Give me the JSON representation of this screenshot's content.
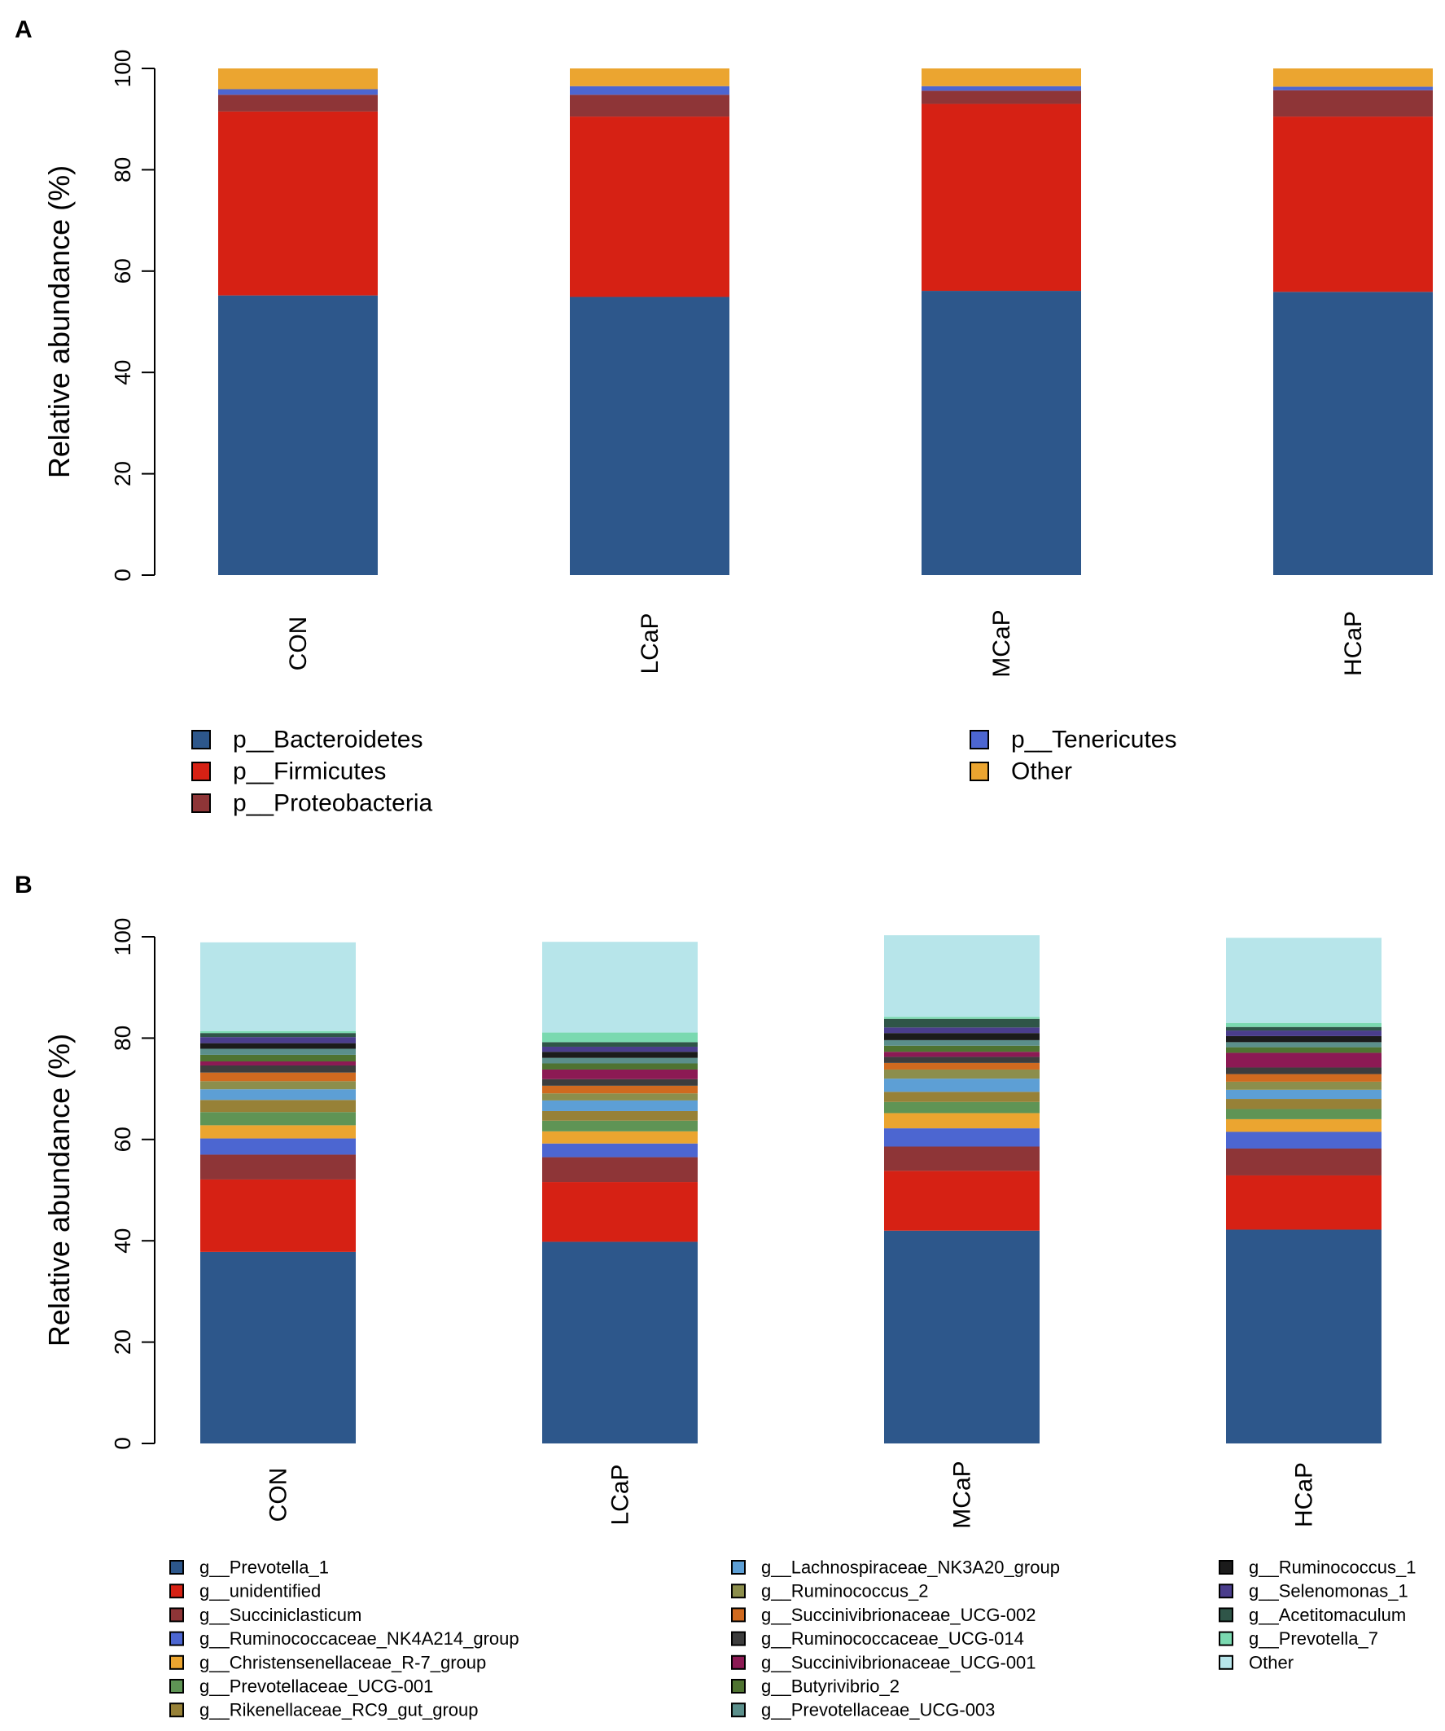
{
  "panel_labels": {
    "a": "A",
    "b": "B"
  },
  "chart_data": [
    {
      "type": "bar",
      "stacked": true,
      "panel": "A",
      "title": "",
      "xlabel": "",
      "ylabel": "Relative abundance (%)",
      "ylim": [
        0,
        100
      ],
      "yticks": [
        0,
        20,
        40,
        60,
        80,
        100
      ],
      "grid": false,
      "categories": [
        "CON",
        "LCaP",
        "MCaP",
        "HCaP"
      ],
      "series": [
        {
          "name": "p__Bacteroidetes",
          "color": "#2d578b",
          "values": [
            55.2,
            54.9,
            56.1,
            55.9
          ]
        },
        {
          "name": "p__Firmicutes",
          "color": "#d62114",
          "values": [
            36.3,
            35.6,
            36.9,
            34.6
          ]
        },
        {
          "name": "p__Proteobacteria",
          "color": "#8e3537",
          "values": [
            3.3,
            4.3,
            2.6,
            5.2
          ]
        },
        {
          "name": "p__Tenericutes",
          "color": "#4c66d1",
          "values": [
            1.1,
            1.7,
            0.9,
            0.7
          ]
        },
        {
          "name": "Other",
          "color": "#eba530",
          "values": [
            4.1,
            3.5,
            3.5,
            3.6
          ]
        }
      ],
      "legend_columns": [
        [
          "p__Bacteroidetes",
          "p__Firmicutes",
          "p__Proteobacteria"
        ],
        [
          "p__Tenericutes",
          "Other"
        ]
      ]
    },
    {
      "type": "bar",
      "stacked": true,
      "panel": "B",
      "title": "",
      "xlabel": "",
      "ylabel": "Relative abundance (%)",
      "ylim": [
        0,
        100
      ],
      "yticks": [
        0,
        20,
        40,
        60,
        80,
        100
      ],
      "grid": false,
      "categories": [
        "CON",
        "LCaP",
        "MCaP",
        "HCaP"
      ],
      "series": [
        {
          "name": "g__Prevotella_1",
          "color": "#2d578b",
          "values": [
            37.8,
            39.8,
            42.0,
            42.2
          ]
        },
        {
          "name": "g__unidentified",
          "color": "#d62114",
          "values": [
            14.3,
            11.8,
            11.8,
            10.7
          ]
        },
        {
          "name": "g__Succiniclasticum",
          "color": "#8e3537",
          "values": [
            4.9,
            4.9,
            4.8,
            5.3
          ]
        },
        {
          "name": "g__Ruminococcaceae_NK4A214_group",
          "color": "#4c66d1",
          "values": [
            3.2,
            2.7,
            3.6,
            3.3
          ]
        },
        {
          "name": "g__Christensenellaceae_R-7_group",
          "color": "#eba530",
          "values": [
            2.6,
            2.4,
            3.0,
            2.5
          ]
        },
        {
          "name": "g__Prevotellaceae_UCG-001",
          "color": "#5f9455",
          "values": [
            2.6,
            2.1,
            2.2,
            2.0
          ]
        },
        {
          "name": "g__Rikenellaceae_RC9_gut_group",
          "color": "#978137",
          "values": [
            2.4,
            1.9,
            2.0,
            2.0
          ]
        },
        {
          "name": "g__Lachnospiraceae_NK3A20_group",
          "color": "#5d9fd5",
          "values": [
            2.1,
            2.1,
            2.6,
            1.8
          ]
        },
        {
          "name": "g__Ruminococcus_2",
          "color": "#8c8e4c",
          "values": [
            1.6,
            1.4,
            1.8,
            1.6
          ]
        },
        {
          "name": "g__Succinivibrionaceae_UCG-002",
          "color": "#d06a1f",
          "values": [
            1.7,
            1.5,
            1.3,
            1.5
          ]
        },
        {
          "name": "g__Ruminococcaceae_UCG-014",
          "color": "#3d3d3d",
          "values": [
            1.4,
            1.3,
            1.2,
            1.3
          ]
        },
        {
          "name": "g__Succinivibrionaceae_UCG-001",
          "color": "#8c1a54",
          "values": [
            0.8,
            1.9,
            1.0,
            2.9
          ]
        },
        {
          "name": "g__Butyrivibrio_2",
          "color": "#4f7331",
          "values": [
            1.3,
            1.2,
            1.2,
            1.1
          ]
        },
        {
          "name": "g__Prevotellaceae_UCG-003",
          "color": "#5b8f8b",
          "values": [
            1.2,
            1.1,
            1.1,
            1.0
          ]
        },
        {
          "name": "g__Ruminococcus_1",
          "color": "#1b1b1b",
          "values": [
            1.1,
            1.2,
            1.4,
            1.2
          ]
        },
        {
          "name": "g__Selenomonas_1",
          "color": "#4a3d8c",
          "values": [
            1.2,
            1.0,
            1.1,
            1.1
          ]
        },
        {
          "name": "g__Acetitomaculum",
          "color": "#2f5548",
          "values": [
            0.8,
            0.9,
            1.7,
            0.7
          ]
        },
        {
          "name": "g__Prevotella_7",
          "color": "#7ad9b0",
          "values": [
            0.4,
            1.9,
            0.4,
            0.8
          ]
        },
        {
          "name": "Other",
          "color": "#b7e5ea",
          "values": [
            17.5,
            17.9,
            16.1,
            16.8
          ]
        }
      ],
      "legend_columns": [
        [
          "g__Prevotella_1",
          "g__unidentified",
          "g__Succiniclasticum",
          "g__Ruminococcaceae_NK4A214_group",
          "g__Christensenellaceae_R-7_group",
          "g__Prevotellaceae_UCG-001",
          "g__Rikenellaceae_RC9_gut_group"
        ],
        [
          "g__Lachnospiraceae_NK3A20_group",
          "g__Ruminococcus_2",
          "g__Succinivibrionaceae_UCG-002",
          "g__Ruminococcaceae_UCG-014",
          "g__Succinivibrionaceae_UCG-001",
          "g__Butyrivibrio_2",
          "g__Prevotellaceae_UCG-003"
        ],
        [
          "g__Ruminococcus_1",
          "g__Selenomonas_1",
          "g__Acetitomaculum",
          "g__Prevotella_7",
          "Other"
        ]
      ]
    }
  ]
}
